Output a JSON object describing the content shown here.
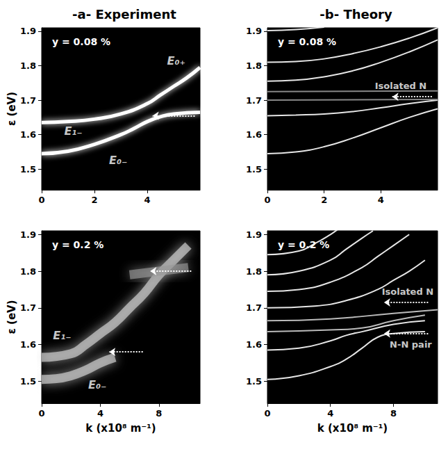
{
  "headers": [
    "-a- Experiment",
    "-b- Theory"
  ],
  "chart_data": [
    {
      "type": "line",
      "title": "y = 0.08 %",
      "y_label": "ε (eV)",
      "xlim": [
        0,
        6
      ],
      "xticks": [
        0,
        2,
        4
      ],
      "ylim": [
        1.44,
        1.91
      ],
      "yticks": [
        1.5,
        1.6,
        1.7,
        1.8,
        1.9
      ],
      "grid": false,
      "series": [
        {
          "color": "#ffffff",
          "values": [
            [
              0,
              1.635
            ],
            [
              1,
              1.638
            ],
            [
              2,
              1.645
            ],
            [
              3,
              1.66
            ],
            [
              4,
              1.69
            ],
            [
              4.5,
              1.715
            ],
            [
              5,
              1.74
            ],
            [
              5.5,
              1.765
            ],
            [
              6,
              1.795
            ]
          ]
        },
        {
          "color": "#ffffff",
          "values": [
            [
              0,
              1.545
            ],
            [
              1,
              1.552
            ],
            [
              2,
              1.572
            ],
            [
              3,
              1.6
            ],
            [
              3.5,
              1.618
            ],
            [
              4,
              1.638
            ],
            [
              4.5,
              1.652
            ],
            [
              5,
              1.66
            ],
            [
              6,
              1.665
            ]
          ]
        }
      ],
      "annotations": [
        {
          "text": "E₀₊",
          "x": 5.1,
          "y": 1.815
        },
        {
          "text": "E₁₋",
          "x": 1.2,
          "y": 1.61
        },
        {
          "text": "E₀₋",
          "x": 2.9,
          "y": 1.525
        }
      ],
      "arrows": [
        {
          "from": [
            5.8,
            1.655
          ],
          "to": [
            4.2,
            1.655
          ]
        }
      ]
    },
    {
      "type": "line",
      "title": "y = 0.08 %",
      "xlim": [
        0,
        6
      ],
      "xticks": [
        0,
        2,
        4
      ],
      "ylim": [
        1.44,
        1.91
      ],
      "yticks": [
        1.5,
        1.6,
        1.7,
        1.8,
        1.9
      ],
      "grid": false,
      "series": [
        {
          "color": "#e6e6e6",
          "values": [
            [
              0,
              1.545
            ],
            [
              1,
              1.55
            ],
            [
              2,
              1.565
            ],
            [
              3,
              1.59
            ],
            [
              4,
              1.62
            ],
            [
              5,
              1.65
            ],
            [
              6,
              1.675
            ]
          ]
        },
        {
          "color": "#e6e6e6",
          "values": [
            [
              0,
              1.655
            ],
            [
              1,
              1.657
            ],
            [
              2,
              1.66
            ],
            [
              3,
              1.667
            ],
            [
              4,
              1.678
            ],
            [
              5,
              1.69
            ],
            [
              6,
              1.7
            ]
          ]
        },
        {
          "color": "#888888",
          "values": [
            [
              0,
              1.7
            ],
            [
              6,
              1.702
            ]
          ]
        },
        {
          "color": "#888888",
          "values": [
            [
              0,
              1.725
            ],
            [
              6,
              1.727
            ]
          ]
        },
        {
          "color": "#e6e6e6",
          "values": [
            [
              0,
              1.755
            ],
            [
              1,
              1.758
            ],
            [
              2,
              1.768
            ],
            [
              3,
              1.785
            ],
            [
              4,
              1.81
            ],
            [
              5,
              1.84
            ],
            [
              6,
              1.875
            ]
          ]
        },
        {
          "color": "#e6e6e6",
          "values": [
            [
              0,
              1.81
            ],
            [
              1,
              1.812
            ],
            [
              2,
              1.82
            ],
            [
              3,
              1.835
            ],
            [
              4,
              1.855
            ],
            [
              5,
              1.88
            ],
            [
              6,
              1.91
            ]
          ]
        },
        {
          "color": "#e6e6e6",
          "values": [
            [
              0,
              1.902
            ],
            [
              1,
              1.905
            ],
            [
              2,
              1.912
            ]
          ]
        }
      ],
      "annotations": [
        {
          "text": "Isolated N",
          "x": 4.7,
          "y": 1.742
        }
      ],
      "arrows": [
        {
          "from": [
            5.8,
            1.71
          ],
          "to": [
            4.4,
            1.71
          ]
        }
      ]
    },
    {
      "type": "line",
      "title": "y = 0.2 %",
      "y_label": "ε (eV)",
      "x_label": "k (x10⁸ m⁻¹)",
      "xlim": [
        0,
        10.8
      ],
      "xticks": [
        0,
        4,
        8
      ],
      "ylim": [
        1.44,
        1.91
      ],
      "yticks": [
        1.5,
        1.6,
        1.7,
        1.8,
        1.9
      ],
      "grid": false,
      "series": [
        {
          "color": "#d8d8d8",
          "values": [
            [
              0,
              1.565
            ],
            [
              2,
              1.575
            ],
            [
              3,
              1.6
            ],
            [
              4,
              1.63
            ],
            [
              5,
              1.66
            ],
            [
              6,
              1.7
            ],
            [
              7,
              1.74
            ],
            [
              8,
              1.79
            ],
            [
              9,
              1.83
            ],
            [
              10,
              1.87
            ]
          ]
        },
        {
          "color": "#d8d8d8",
          "values": [
            [
              0,
              1.505
            ],
            [
              1,
              1.507
            ],
            [
              2,
              1.515
            ],
            [
              3,
              1.53
            ],
            [
              4,
              1.55
            ],
            [
              5,
              1.565
            ]
          ]
        },
        {
          "color": "#9a9a9a",
          "values": [
            [
              6,
              1.79
            ],
            [
              8,
              1.8
            ],
            [
              10,
              1.81
            ]
          ]
        }
      ],
      "annotations": [
        {
          "text": "E₁₋",
          "x": 1.4,
          "y": 1.625
        },
        {
          "text": "E₀₋",
          "x": 3.8,
          "y": 1.49
        }
      ],
      "arrows": [
        {
          "from": [
            10.2,
            1.8
          ],
          "to": [
            7.4,
            1.8
          ]
        },
        {
          "from": [
            6.9,
            1.58
          ],
          "to": [
            4.6,
            1.58
          ]
        }
      ]
    },
    {
      "type": "line",
      "title": "y = 0.2 %",
      "x_label": "k (x10⁸ m⁻¹)",
      "xlim": [
        0,
        10.8
      ],
      "xticks": [
        0,
        4,
        8
      ],
      "ylim": [
        1.44,
        1.91
      ],
      "yticks": [
        1.5,
        1.6,
        1.7,
        1.8,
        1.9
      ],
      "grid": false,
      "series": [
        {
          "color": "#e6e6e6",
          "values": [
            [
              0,
              1.505
            ],
            [
              2,
              1.515
            ],
            [
              4,
              1.54
            ],
            [
              5,
              1.56
            ],
            [
              6,
              1.59
            ],
            [
              7,
              1.62
            ],
            [
              8,
              1.63
            ],
            [
              10,
              1.635
            ]
          ]
        },
        {
          "color": "#e6e6e6",
          "values": [
            [
              0,
              1.585
            ],
            [
              2,
              1.59
            ],
            [
              4,
              1.61
            ],
            [
              5,
              1.625
            ],
            [
              6,
              1.635
            ],
            [
              8,
              1.655
            ],
            [
              10,
              1.665
            ]
          ]
        },
        {
          "color": "#bbbbbb",
          "values": [
            [
              0,
              1.635
            ],
            [
              4,
              1.64
            ],
            [
              6,
              1.645
            ],
            [
              8,
              1.665
            ],
            [
              10,
              1.68
            ]
          ]
        },
        {
          "color": "#bbbbbb",
          "values": [
            [
              0,
              1.665
            ],
            [
              4,
              1.67
            ],
            [
              8,
              1.685
            ],
            [
              10.8,
              1.695
            ]
          ]
        },
        {
          "color": "#e6e6e6",
          "values": [
            [
              0,
              1.7
            ],
            [
              3,
              1.705
            ],
            [
              5,
              1.72
            ],
            [
              7,
              1.75
            ],
            [
              8,
              1.775
            ],
            [
              9,
              1.8
            ],
            [
              10,
              1.83
            ]
          ]
        },
        {
          "color": "#e6e6e6",
          "values": [
            [
              0,
              1.745
            ],
            [
              2,
              1.75
            ],
            [
              4,
              1.77
            ],
            [
              6,
              1.81
            ],
            [
              7,
              1.84
            ],
            [
              8,
              1.87
            ],
            [
              9,
              1.9
            ]
          ]
        },
        {
          "color": "#e6e6e6",
          "values": [
            [
              0,
              1.79
            ],
            [
              2,
              1.8
            ],
            [
              4,
              1.83
            ],
            [
              5,
              1.86
            ],
            [
              6,
              1.89
            ],
            [
              6.7,
              1.91
            ]
          ]
        },
        {
          "color": "#e6e6e6",
          "values": [
            [
              0,
              1.845
            ],
            [
              2,
              1.855
            ],
            [
              3,
              1.875
            ],
            [
              4,
              1.9
            ],
            [
              4.5,
              1.915
            ]
          ]
        }
      ],
      "annotations": [
        {
          "text": "Isolated N",
          "x": 8.9,
          "y": 1.745
        },
        {
          "text": "N-N pair",
          "x": 9.1,
          "y": 1.6
        }
      ],
      "arrows": [
        {
          "from": [
            10.2,
            1.715
          ],
          "to": [
            7.4,
            1.715
          ]
        },
        {
          "from": [
            10.2,
            1.63
          ],
          "to": [
            7.4,
            1.63
          ]
        }
      ]
    }
  ]
}
